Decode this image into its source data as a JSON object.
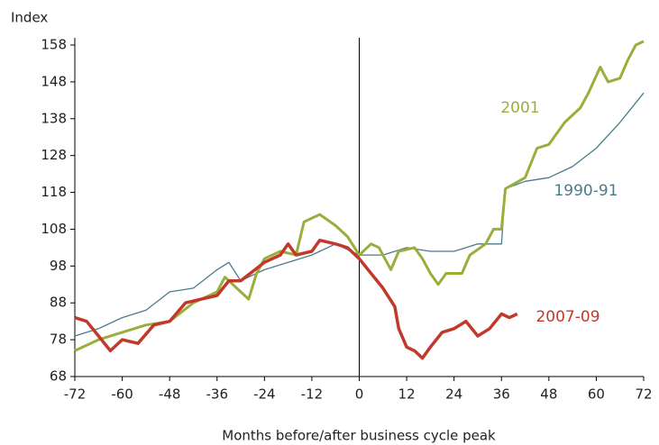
{
  "chart_data": {
    "type": "line",
    "ylabel": "Index",
    "xlabel": "Months before/after business cycle peak",
    "xlim": [
      -72,
      72
    ],
    "xticks": [
      -72,
      -60,
      -48,
      -36,
      -24,
      -12,
      0,
      12,
      24,
      36,
      48,
      60,
      72
    ],
    "ylim": [
      68,
      158
    ],
    "yticks": [
      68,
      78,
      88,
      98,
      108,
      118,
      128,
      138,
      148,
      158
    ],
    "grid": false,
    "series": [
      {
        "name": "1990-91",
        "color": "#4b7a8c",
        "x": [
          -72,
          -66,
          -60,
          -54,
          -48,
          -42,
          -36,
          -33,
          -30,
          -24,
          -18,
          -12,
          -6,
          0,
          6,
          12,
          18,
          24,
          30,
          36,
          37,
          42,
          48,
          54,
          60,
          66,
          72
        ],
        "values": [
          79,
          81,
          84,
          86,
          91,
          92,
          97,
          99,
          94,
          97,
          99,
          101,
          104,
          101,
          101,
          103,
          102,
          102,
          104,
          104,
          119,
          121,
          122,
          125,
          130,
          137,
          145
        ]
      },
      {
        "name": "2001",
        "color": "#9aae3c",
        "x": [
          -72,
          -66,
          -60,
          -54,
          -48,
          -42,
          -36,
          -34,
          -30,
          -28,
          -26,
          -24,
          -20,
          -16,
          -14,
          -12,
          -10,
          -6,
          -3,
          0,
          3,
          5,
          8,
          10,
          14,
          16,
          18,
          20,
          22,
          26,
          28,
          32,
          34,
          36,
          37,
          42,
          45,
          48,
          52,
          56,
          58,
          61,
          63,
          66,
          68,
          70,
          72
        ],
        "values": [
          75,
          78,
          80,
          82,
          83,
          88,
          91,
          95,
          91,
          89,
          96,
          100,
          102,
          101,
          110,
          111,
          112,
          109,
          106,
          101,
          104,
          103,
          97,
          102,
          103,
          100,
          96,
          93,
          96,
          96,
          101,
          104,
          108,
          108,
          119,
          122,
          130,
          131,
          137,
          141,
          145,
          152,
          148,
          149,
          154,
          158,
          159
        ]
      },
      {
        "name": "2007-09",
        "color": "#c0392b",
        "x": [
          -72,
          -69,
          -66,
          -63,
          -60,
          -56,
          -52,
          -48,
          -44,
          -40,
          -36,
          -33,
          -30,
          -24,
          -20,
          -18,
          -16,
          -12,
          -10,
          -6,
          -3,
          0,
          3,
          6,
          9,
          10,
          12,
          14,
          16,
          18,
          21,
          24,
          27,
          30,
          33,
          36,
          38,
          40
        ],
        "values": [
          84,
          83,
          79,
          75,
          78,
          77,
          82,
          83,
          88,
          89,
          90,
          94,
          94,
          99,
          101,
          104,
          101,
          102,
          105,
          104,
          103,
          100,
          96,
          92,
          87,
          81,
          76,
          75,
          73,
          76,
          80,
          81,
          83,
          79,
          81,
          85,
          84,
          85
        ]
      }
    ]
  }
}
